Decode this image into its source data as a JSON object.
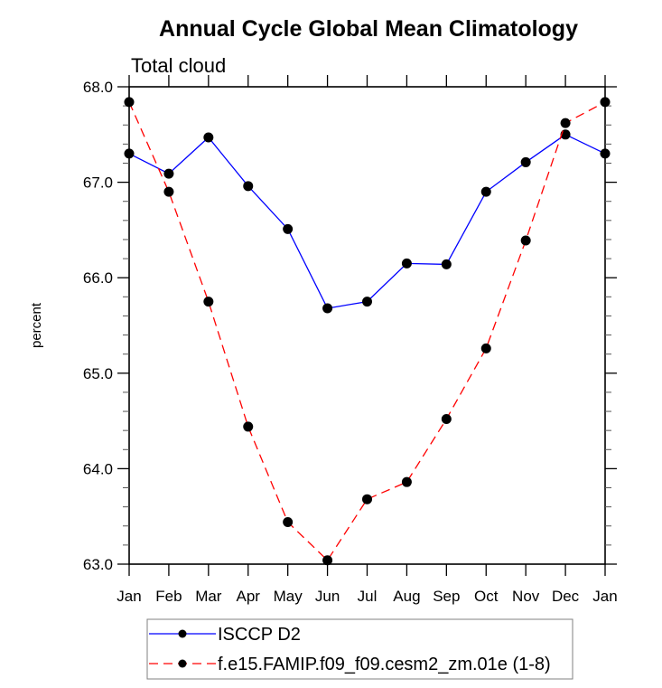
{
  "chart_data": {
    "type": "line",
    "title": "Annual Cycle Global Mean Climatology",
    "subtitle": "Total cloud",
    "xlabel": "",
    "ylabel": "percent",
    "categories": [
      "Jan",
      "Feb",
      "Mar",
      "Apr",
      "May",
      "Jun",
      "Jul",
      "Aug",
      "Sep",
      "Oct",
      "Nov",
      "Dec",
      "Jan"
    ],
    "yticks": [
      "63.0",
      "64.0",
      "65.0",
      "66.0",
      "67.0",
      "68.0"
    ],
    "ylim": [
      63.0,
      68.0
    ],
    "y_minor_step": 0.2,
    "grid": false,
    "legend_position": "bottom",
    "series": [
      {
        "name": "ISCCP D2",
        "color": "#0000ff",
        "line_style": "solid",
        "marker": "filled-circle",
        "values": [
          67.3,
          67.09,
          67.47,
          66.96,
          66.51,
          65.68,
          65.75,
          66.15,
          66.14,
          66.9,
          67.21,
          67.5,
          67.3
        ]
      },
      {
        "name": "f.e15.FAMIP.f09_f09.cesm2_zm.01e (1-8)",
        "color": "#ff0000",
        "line_style": "dashed",
        "marker": "filled-circle",
        "values": [
          67.84,
          66.9,
          65.75,
          64.44,
          63.44,
          63.04,
          63.68,
          63.86,
          64.52,
          65.26,
          66.39,
          67.62,
          67.84
        ]
      }
    ]
  }
}
